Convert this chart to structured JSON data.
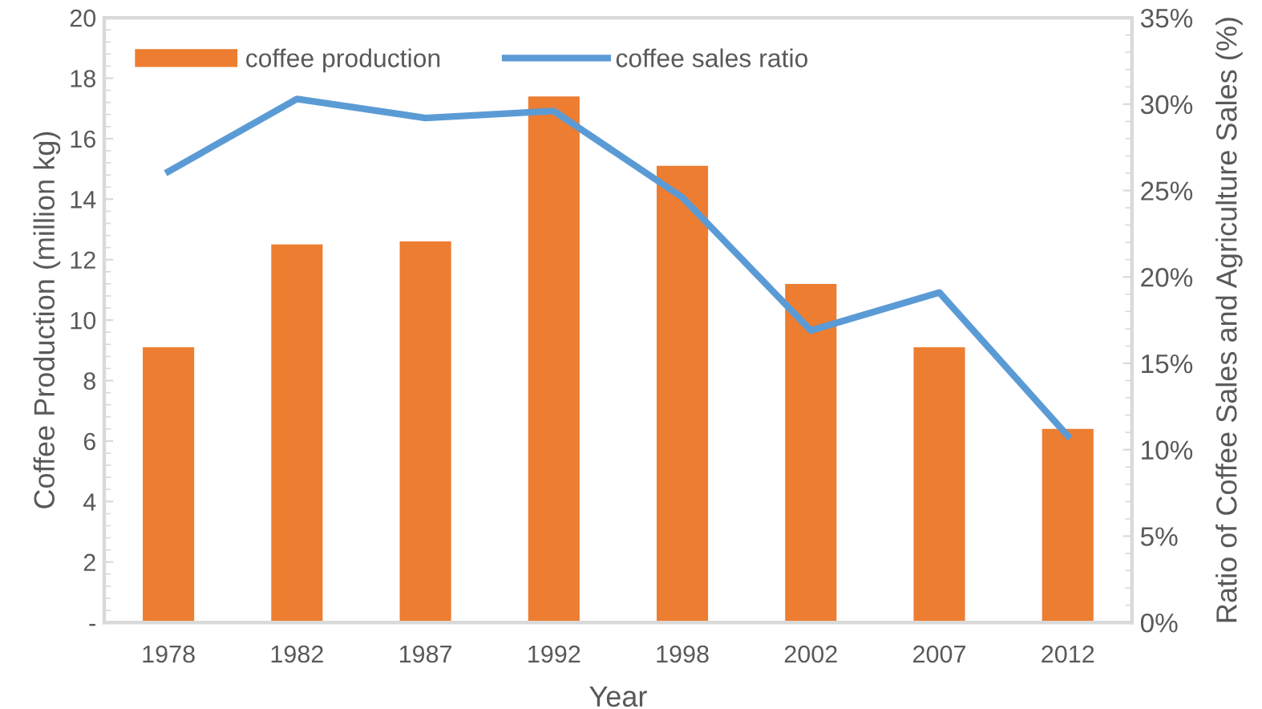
{
  "chart_data": {
    "type": "bar",
    "categories": [
      "1978",
      "1982",
      "1987",
      "1992",
      "1998",
      "2002",
      "2007",
      "2012"
    ],
    "series": [
      {
        "name": "coffee production",
        "color": "#ed7d31",
        "values": [
          9.1,
          12.5,
          12.6,
          17.4,
          15.1,
          11.2,
          9.1,
          6.4
        ]
      },
      {
        "name": "coffee sales ratio",
        "type": "line",
        "axis": "y2",
        "color": "#5b9bd5",
        "values": [
          26.1,
          30.3,
          29.2,
          29.6,
          24.6,
          16.9,
          19.1,
          10.8
        ]
      }
    ],
    "xlabel": "Year",
    "ylabel": "Coffee Production (million kg)",
    "y2label": "Ratio of Coffee Sales and Agriculture Sales (%)",
    "ylim": [
      0,
      20
    ],
    "yticks": [
      {
        "value": 0,
        "label": "-"
      },
      2,
      4,
      6,
      8,
      10,
      12,
      14,
      16,
      18,
      20
    ],
    "y2lim": [
      0,
      35
    ],
    "y2ticks": [
      {
        "value": 0,
        "label": "0%"
      },
      {
        "value": 5,
        "label": "5%"
      },
      {
        "value": 10,
        "label": "10%"
      },
      {
        "value": 15,
        "label": "15%"
      },
      {
        "value": 20,
        "label": "20%"
      },
      {
        "value": 25,
        "label": "25%"
      },
      {
        "value": 30,
        "label": "30%"
      },
      {
        "value": 35,
        "label": "35%"
      }
    ],
    "grid": false,
    "legend": "top left",
    "marker": "none",
    "line_style": "solid"
  }
}
